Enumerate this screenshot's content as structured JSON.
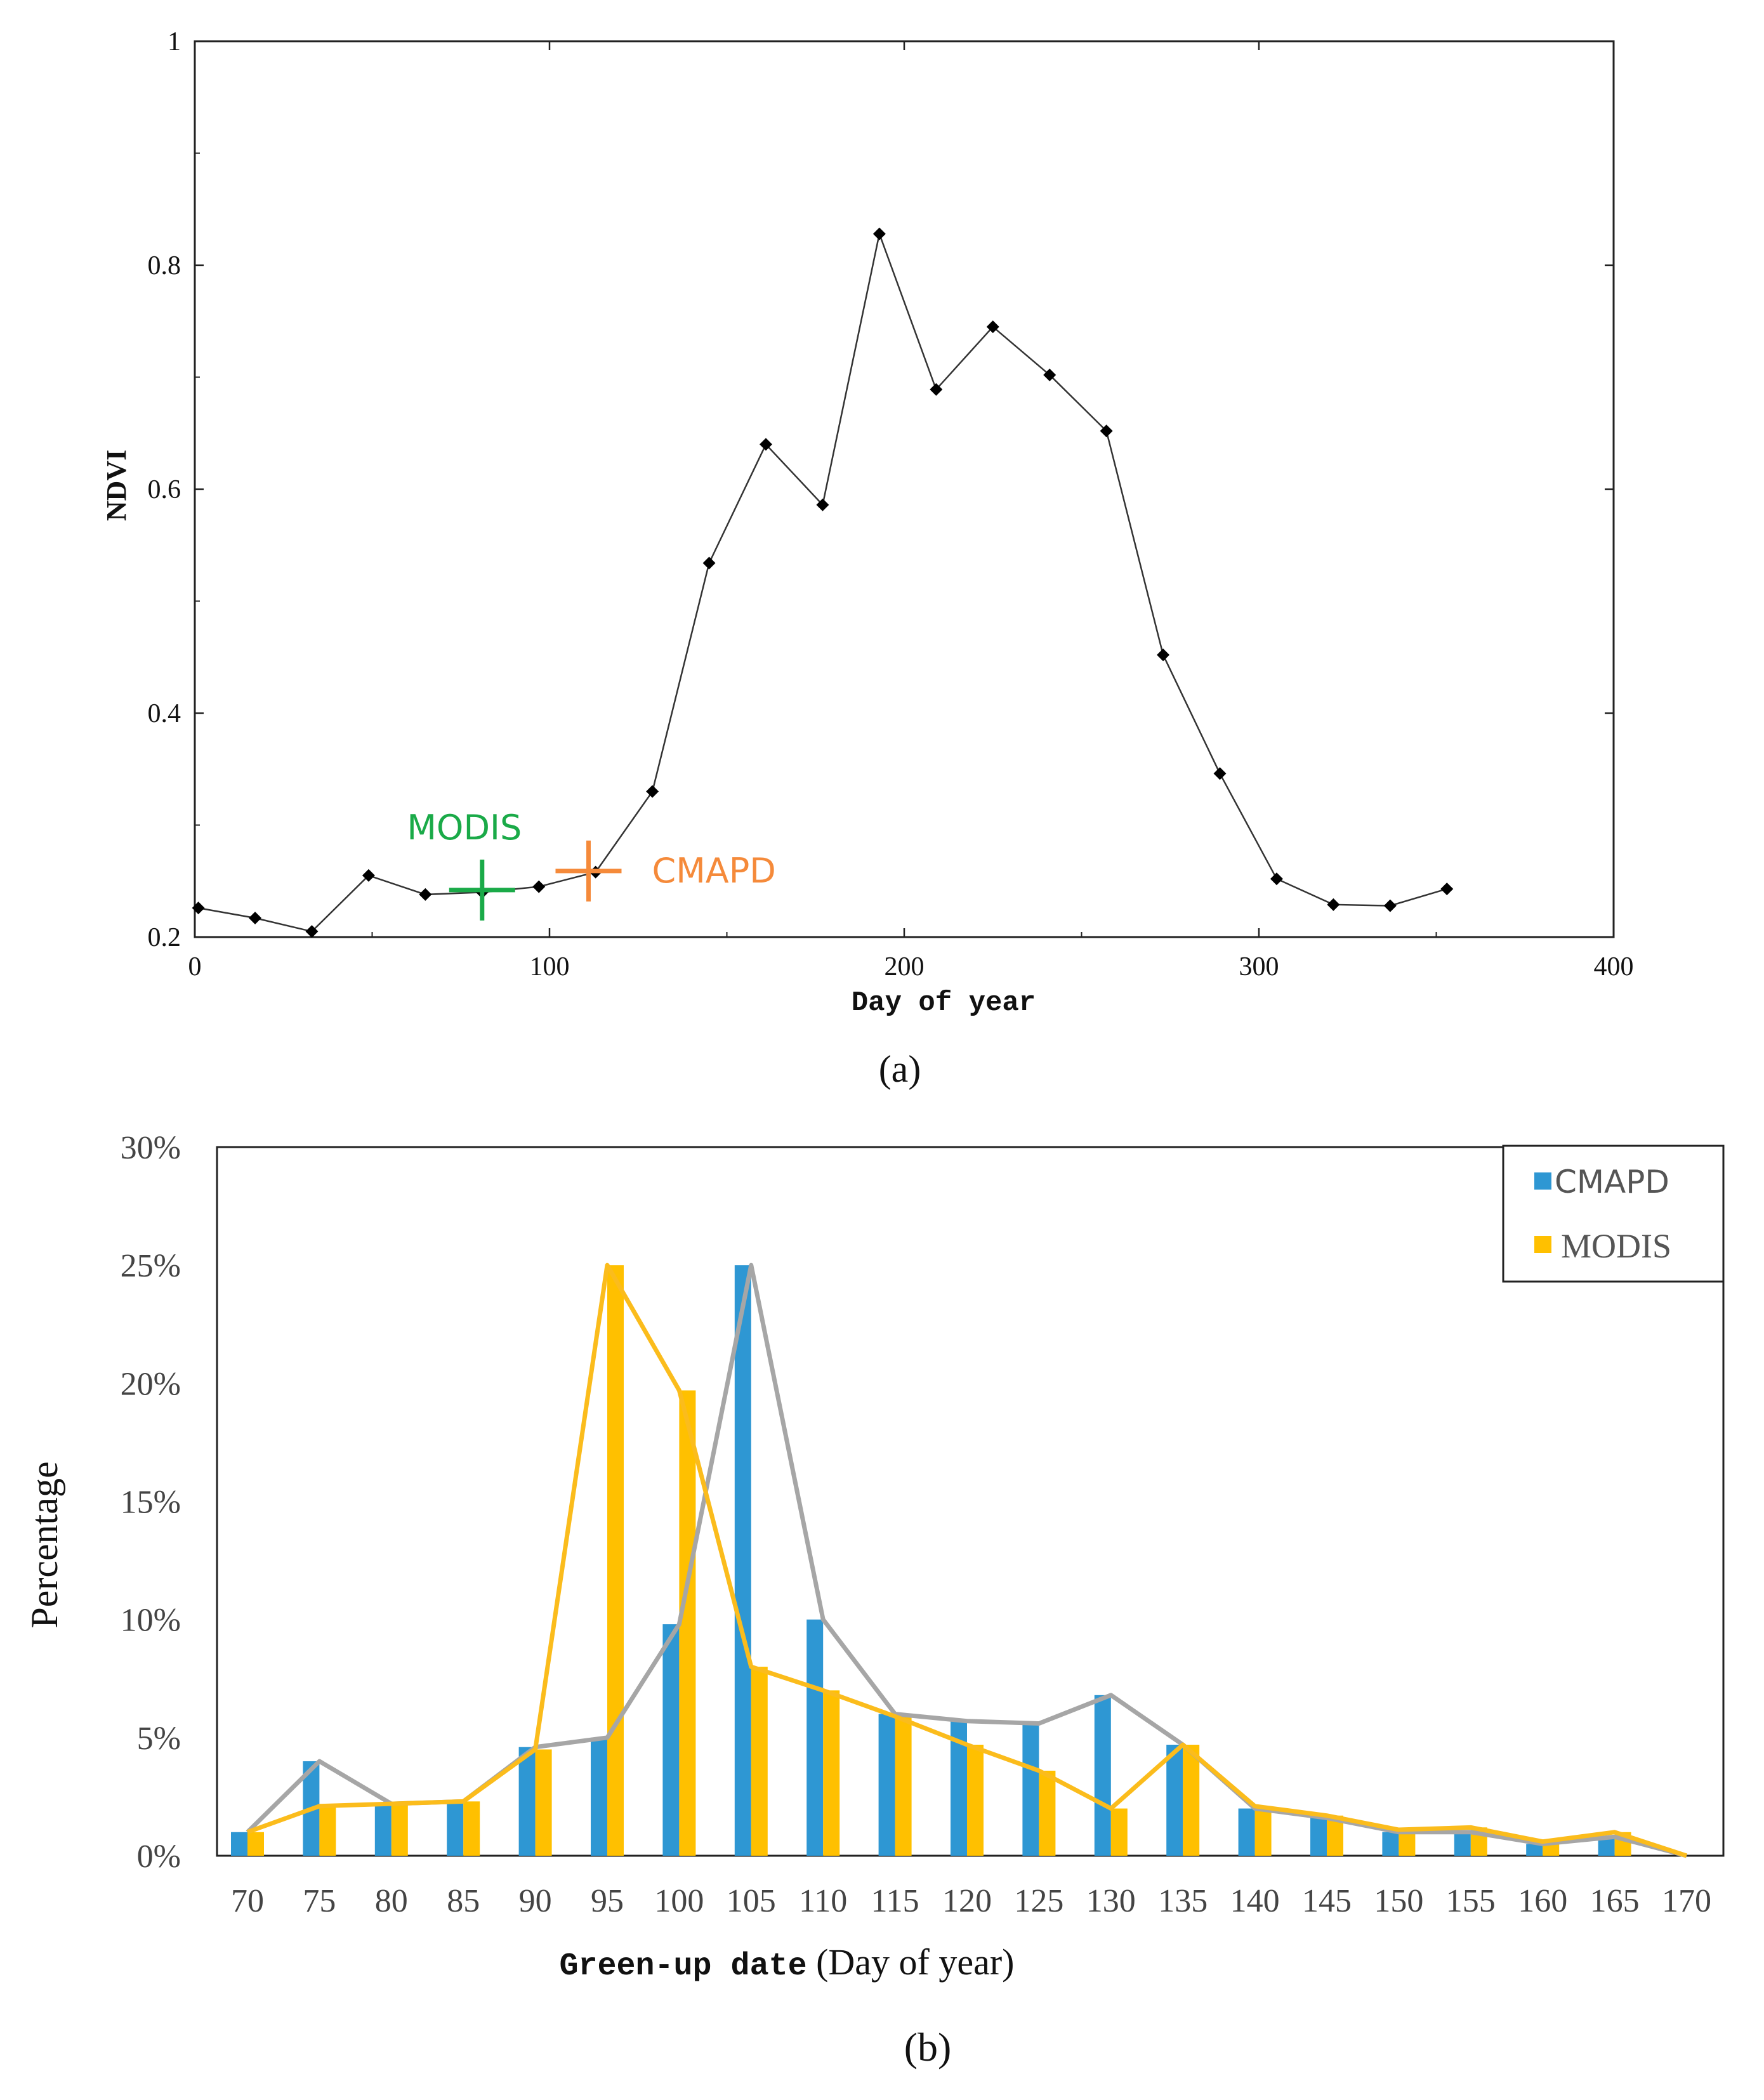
{
  "chart_data": [
    {
      "type": "line",
      "panel_label": "(a)",
      "xlabel": "Day of year",
      "ylabel": "NDVI",
      "xlim": [
        0,
        400
      ],
      "ylim": [
        0.2,
        1.0
      ],
      "xticks": [
        0,
        100,
        200,
        300,
        400
      ],
      "yticks": [
        0.2,
        0.4,
        0.6,
        0.8,
        1.0
      ],
      "xtick_labels": [
        "0",
        "100",
        "200",
        "300",
        "400"
      ],
      "ytick_labels": [
        "0.2",
        "0.4",
        "0.6",
        "0.8",
        "1"
      ],
      "series": [
        {
          "name": "NDVI",
          "color": "#333333",
          "x": [
            1,
            17,
            33,
            49,
            65,
            81,
            97,
            113,
            129,
            145,
            161,
            177,
            193,
            209,
            225,
            241,
            257,
            273,
            289,
            305,
            321,
            337,
            353
          ],
          "y": [
            0.226,
            0.217,
            0.205,
            0.255,
            0.238,
            0.24,
            0.245,
            0.258,
            0.33,
            0.534,
            0.64,
            0.586,
            0.828,
            0.689,
            0.745,
            0.702,
            0.652,
            0.452,
            0.346,
            0.252,
            0.229,
            0.228,
            0.243
          ]
        }
      ],
      "annotations": [
        {
          "label": "MODIS",
          "x": 81,
          "y": 0.242,
          "color": "#1aaa48"
        },
        {
          "label": "CMAPD",
          "x": 111,
          "y": 0.259,
          "color": "#f58a3a"
        }
      ]
    },
    {
      "type": "bar",
      "panel_label": "(b)",
      "xlabel_part1": "Green-up date",
      "xlabel_part2": " (Day of year)",
      "ylabel": "Percentage",
      "ylim": [
        0,
        30
      ],
      "yticks": [
        0,
        5,
        10,
        15,
        20,
        25,
        30
      ],
      "ytick_labels": [
        "0%",
        "5%",
        "10%",
        "15%",
        "20%",
        "25%",
        "30%"
      ],
      "categories": [
        "70",
        "75",
        "80",
        "85",
        "90",
        "95",
        "100",
        "105",
        "110",
        "115",
        "120",
        "125",
        "130",
        "135",
        "140",
        "145",
        "150",
        "155",
        "160",
        "165",
        "170"
      ],
      "legend_position": "top-right",
      "series": [
        {
          "name": "CMAPD",
          "color": "#2e97d3",
          "line_color": "#a6a6a6",
          "values": [
            1.0,
            4.0,
            2.2,
            2.3,
            4.6,
            5.0,
            9.8,
            25.0,
            10.0,
            6.0,
            5.7,
            5.6,
            6.8,
            4.7,
            2.0,
            1.6,
            1.0,
            1.0,
            0.5,
            0.8,
            0.0
          ]
        },
        {
          "name": "MODIS",
          "color": "#ffc000",
          "line_color": "#fbbc1c",
          "values": [
            1.0,
            2.1,
            2.2,
            2.3,
            4.5,
            25.0,
            19.7,
            8.0,
            7.0,
            5.9,
            4.7,
            3.6,
            2.0,
            4.7,
            2.1,
            1.7,
            1.1,
            1.2,
            0.6,
            1.0,
            0.0
          ]
        }
      ]
    }
  ]
}
